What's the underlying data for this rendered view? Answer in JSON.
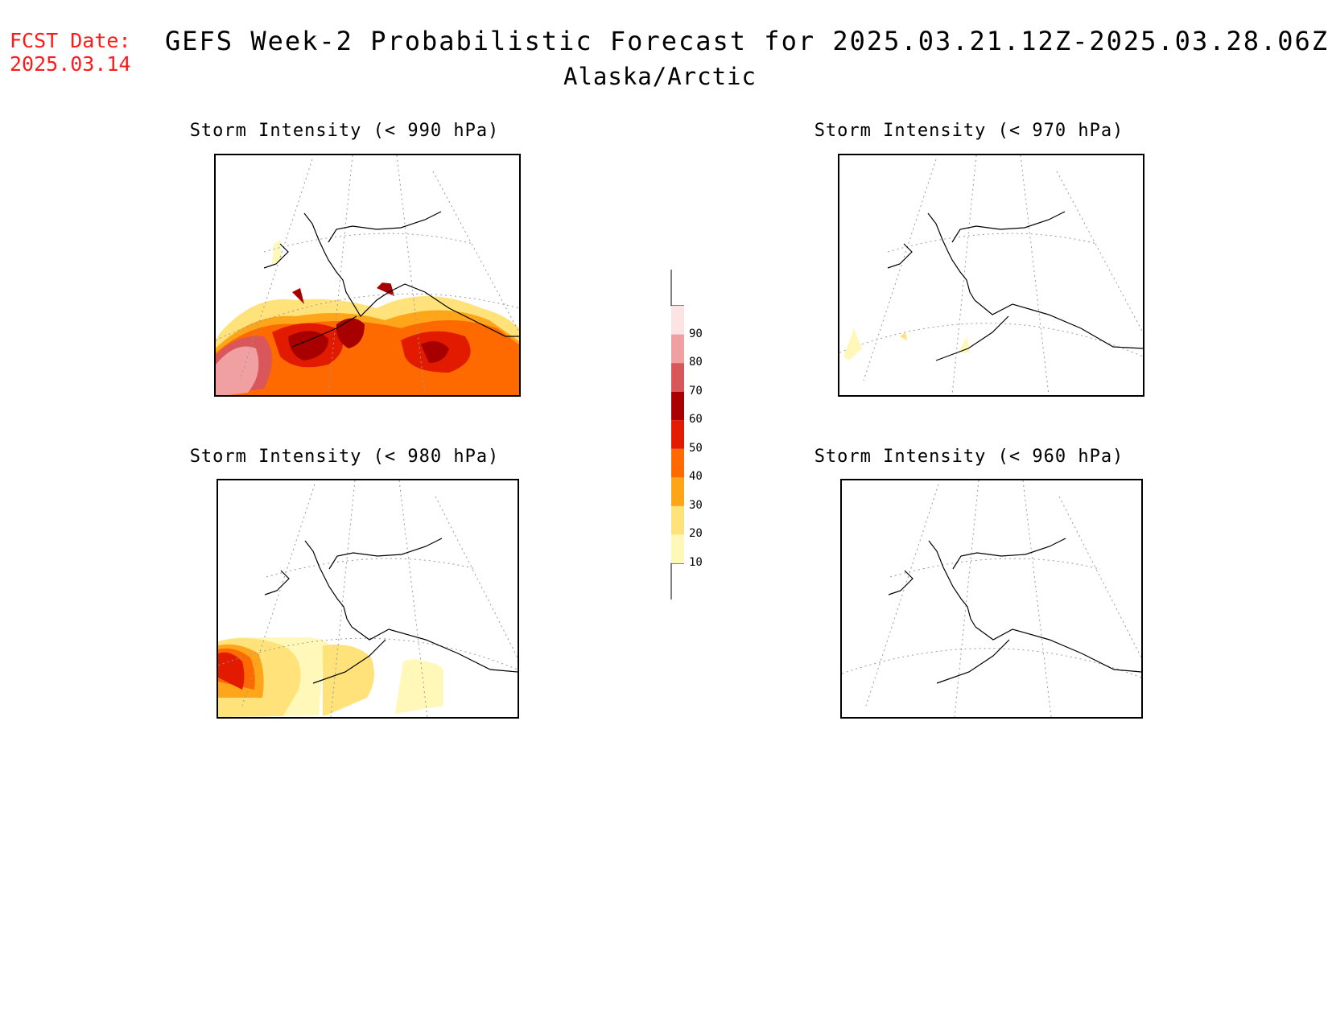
{
  "fcst_date": {
    "label": "FCST Date:",
    "value": "2025.03.14"
  },
  "header": {
    "title": "GEFS Week-2 Probabilistic Forecast for 2025.03.21.12Z-2025.03.28.06Z",
    "subtitle": "Alaska/Arctic"
  },
  "panels": [
    {
      "id": "p990",
      "title": "Storm Intensity (< 990 hPa)",
      "coverage": "high"
    },
    {
      "id": "p970",
      "title": "Storm Intensity (< 970 hPa)",
      "coverage": "minimal"
    },
    {
      "id": "p980",
      "title": "Storm Intensity (< 980 hPa)",
      "coverage": "low"
    },
    {
      "id": "p960",
      "title": "Storm Intensity (< 960 hPa)",
      "coverage": "none"
    }
  ],
  "colorbar": {
    "levels": [
      "10",
      "20",
      "30",
      "40",
      "50",
      "60",
      "70",
      "80",
      "90"
    ],
    "colors": [
      "#fff8b8",
      "#ffe27a",
      "#ffa51a",
      "#ff6a00",
      "#e21a00",
      "#a80000",
      "#d9565a",
      "#f0a0a0",
      "#fde4e4"
    ]
  }
}
